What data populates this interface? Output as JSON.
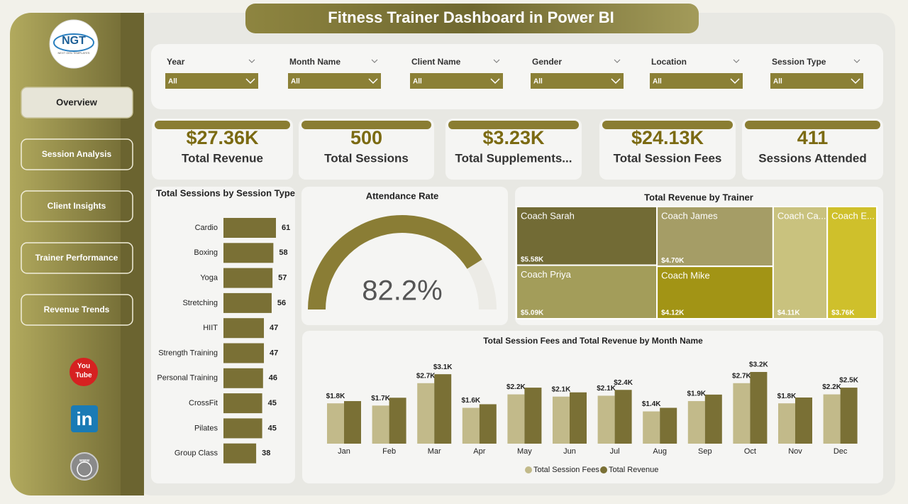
{
  "header": {
    "title": "Fitness Trainer Dashboard in Power BI"
  },
  "logo": {
    "text": "NGT",
    "subtext": "NEXT GEN TEMPLATES"
  },
  "nav": [
    "Overview",
    "Session Analysis",
    "Client Insights",
    "Trainer Performance",
    "Revenue Trends"
  ],
  "social": {
    "youtube": [
      "You",
      "Tube"
    ],
    "linkedin": "in",
    "web": "www"
  },
  "filters": [
    {
      "label": "Year",
      "value": "All"
    },
    {
      "label": "Month Name",
      "value": "All"
    },
    {
      "label": "Client Name",
      "value": "All"
    },
    {
      "label": "Gender",
      "value": "All"
    },
    {
      "label": "Location",
      "value": "All"
    },
    {
      "label": "Session Type",
      "value": "All"
    }
  ],
  "kpis": [
    {
      "value": "$27.36K",
      "label": "Total Revenue"
    },
    {
      "value": "500",
      "label": "Total Sessions"
    },
    {
      "value": "$3.23K",
      "label": "Total Supplements..."
    },
    {
      "value": "$24.13K",
      "label": "Total Session Fees"
    },
    {
      "value": "411",
      "label": "Sessions Attended"
    }
  ],
  "chart_data": [
    {
      "type": "hbar",
      "title": "Total Sessions by Session Type",
      "categories": [
        "Cardio",
        "Boxing",
        "Yoga",
        "Stretching",
        "HIIT",
        "Strength Training",
        "Personal Training",
        "CrossFit",
        "Pilates",
        "Group Class"
      ],
      "values": [
        61,
        58,
        57,
        56,
        47,
        47,
        46,
        45,
        45,
        38
      ],
      "color": "#7a7035"
    },
    {
      "type": "gauge",
      "title": "Attendance Rate",
      "values": [
        82.2
      ],
      "value_labels": [
        "82.2%"
      ],
      "ylim": [
        0,
        100
      ],
      "color": "#8a7d35"
    },
    {
      "type": "treemap",
      "title": "Total Revenue by Trainer",
      "categories": [
        "Coach Sarah",
        "Coach Priya",
        "Coach James",
        "Coach Mike",
        "Coach Ca...",
        "Coach E..."
      ],
      "values": [
        5580,
        5090,
        4700,
        4120,
        4110,
        3760
      ],
      "value_labels": [
        "$5.58K",
        "$5.09K",
        "$4.70K",
        "$4.12K",
        "$4.11K",
        "$3.76K"
      ],
      "colors": [
        "#726b35",
        "#a39d5a",
        "#a59d66",
        "#a29415",
        "#c9c27e",
        "#cfc02b"
      ]
    },
    {
      "type": "grouped_bar",
      "title": "Total Session Fees and Total Revenue by Month Name",
      "categories": [
        "Jan",
        "Feb",
        "Mar",
        "Apr",
        "May",
        "Jun",
        "Jul",
        "Aug",
        "Sep",
        "Oct",
        "Nov",
        "Dec"
      ],
      "series": [
        {
          "name": "Total Session Fees",
          "color": "#c2ba8a",
          "values": [
            1800,
            1700,
            2700,
            1600,
            2200,
            2100,
            2140,
            1440,
            1900,
            2700,
            1800,
            2200
          ],
          "value_labels": [
            "$1.8K",
            "$1.7K",
            "$2.7K",
            "$1.6K",
            "$2.2K",
            "$2.1K",
            "$2.1K",
            "$1.4K",
            "$1.9K",
            "$2.7K",
            "$1.8K",
            "$2.2K"
          ]
        },
        {
          "name": "Total Revenue",
          "color": "#7a7035",
          "values": [
            1900,
            2050,
            3100,
            1760,
            2500,
            2290,
            2400,
            1600,
            2190,
            3200,
            2060,
            2500
          ],
          "value_labels": [
            null,
            null,
            "$3.1K",
            null,
            null,
            null,
            "$2.4K",
            null,
            null,
            "$3.2K",
            null,
            "$2.5K"
          ]
        }
      ]
    }
  ]
}
